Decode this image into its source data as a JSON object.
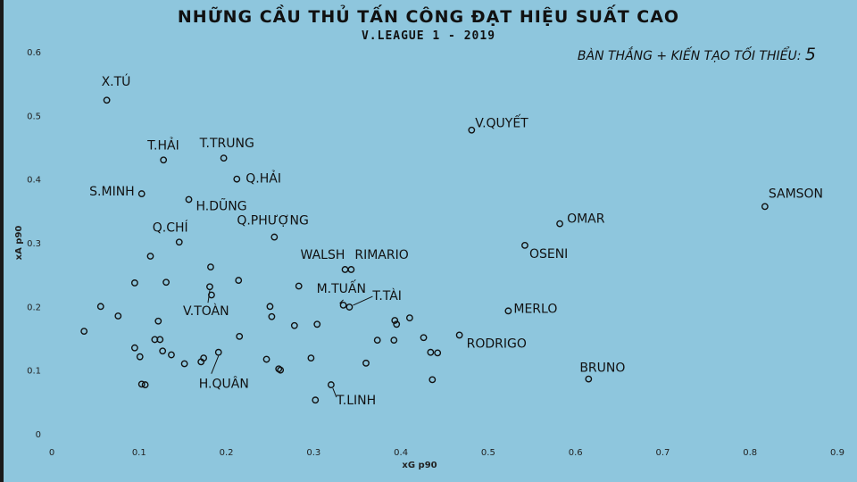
{
  "chart_data": {
    "type": "scatter",
    "title": "NHỮNG CẦU THỦ TẤN CÔNG ĐẠT HIỆU SUẤT CAO",
    "subtitle": "V.LEAGUE 1 - 2019",
    "note_text": "BÀN THẮNG + KIẾN TẠO TỐI THIỂU: ",
    "note_value": "5",
    "xlabel": "xG p90",
    "ylabel": "xA p90",
    "xlim": [
      0,
      0.9
    ],
    "ylim": [
      0,
      0.6
    ],
    "x_ticks": [
      "0",
      "0.1",
      "0.2",
      "0.3",
      "0.4",
      "0.5",
      "0.6",
      "0.7",
      "0.8",
      "0.9"
    ],
    "y_ticks": [
      "0",
      "0.1",
      "0.2",
      "0.3",
      "0.4",
      "0.5",
      "0.6"
    ],
    "grid": false,
    "points": [
      {
        "x": 0.063,
        "y": 0.524,
        "label": "X.TÚ"
      },
      {
        "x": 0.128,
        "y": 0.43,
        "label": "T.HẢI"
      },
      {
        "x": 0.197,
        "y": 0.433,
        "label": "T.TRUNG"
      },
      {
        "x": 0.212,
        "y": 0.4,
        "label": "Q.HẢI"
      },
      {
        "x": 0.103,
        "y": 0.377,
        "label": "S.MINH"
      },
      {
        "x": 0.157,
        "y": 0.368,
        "label": "H.DŨNG"
      },
      {
        "x": 0.146,
        "y": 0.301,
        "label": "Q.CHÍ"
      },
      {
        "x": 0.255,
        "y": 0.309,
        "label": "Q.PHƯỢNG"
      },
      {
        "x": 0.336,
        "y": 0.258,
        "label": "WALSH"
      },
      {
        "x": 0.343,
        "y": 0.258,
        "label": "RIMARIO"
      },
      {
        "x": 0.334,
        "y": 0.202,
        "label": "M.TUẤN"
      },
      {
        "x": 0.341,
        "y": 0.199,
        "label": "T.TÀI"
      },
      {
        "x": 0.181,
        "y": 0.231,
        "label": "V.TOÀN"
      },
      {
        "x": 0.191,
        "y": 0.128,
        "label": "H.QUÂN"
      },
      {
        "x": 0.32,
        "y": 0.077,
        "label": "T.LINH"
      },
      {
        "x": 0.481,
        "y": 0.477,
        "label": "V.QUYẾT"
      },
      {
        "x": 0.582,
        "y": 0.33,
        "label": "OMAR"
      },
      {
        "x": 0.542,
        "y": 0.296,
        "label": "OSENI"
      },
      {
        "x": 0.523,
        "y": 0.193,
        "label": "MERLO"
      },
      {
        "x": 0.467,
        "y": 0.155,
        "label": "RODRIGO"
      },
      {
        "x": 0.615,
        "y": 0.086,
        "label": "BRUNO"
      },
      {
        "x": 0.817,
        "y": 0.357,
        "label": "SAMSON"
      },
      {
        "x": 0.037,
        "y": 0.161,
        "label": ""
      },
      {
        "x": 0.056,
        "y": 0.2,
        "label": ""
      },
      {
        "x": 0.076,
        "y": 0.185,
        "label": ""
      },
      {
        "x": 0.095,
        "y": 0.237,
        "label": ""
      },
      {
        "x": 0.095,
        "y": 0.135,
        "label": ""
      },
      {
        "x": 0.101,
        "y": 0.121,
        "label": ""
      },
      {
        "x": 0.103,
        "y": 0.078,
        "label": ""
      },
      {
        "x": 0.107,
        "y": 0.077,
        "label": ""
      },
      {
        "x": 0.113,
        "y": 0.279,
        "label": ""
      },
      {
        "x": 0.118,
        "y": 0.148,
        "label": ""
      },
      {
        "x": 0.122,
        "y": 0.177,
        "label": ""
      },
      {
        "x": 0.124,
        "y": 0.148,
        "label": ""
      },
      {
        "x": 0.127,
        "y": 0.13,
        "label": ""
      },
      {
        "x": 0.131,
        "y": 0.238,
        "label": ""
      },
      {
        "x": 0.137,
        "y": 0.124,
        "label": ""
      },
      {
        "x": 0.152,
        "y": 0.11,
        "label": ""
      },
      {
        "x": 0.171,
        "y": 0.113,
        "label": ""
      },
      {
        "x": 0.174,
        "y": 0.119,
        "label": ""
      },
      {
        "x": 0.182,
        "y": 0.262,
        "label": ""
      },
      {
        "x": 0.183,
        "y": 0.218,
        "label": ""
      },
      {
        "x": 0.214,
        "y": 0.241,
        "label": ""
      },
      {
        "x": 0.215,
        "y": 0.153,
        "label": ""
      },
      {
        "x": 0.246,
        "y": 0.117,
        "label": ""
      },
      {
        "x": 0.25,
        "y": 0.2,
        "label": ""
      },
      {
        "x": 0.252,
        "y": 0.184,
        "label": ""
      },
      {
        "x": 0.26,
        "y": 0.102,
        "label": ""
      },
      {
        "x": 0.262,
        "y": 0.1,
        "label": ""
      },
      {
        "x": 0.278,
        "y": 0.17,
        "label": ""
      },
      {
        "x": 0.283,
        "y": 0.232,
        "label": ""
      },
      {
        "x": 0.297,
        "y": 0.119,
        "label": ""
      },
      {
        "x": 0.302,
        "y": 0.053,
        "label": ""
      },
      {
        "x": 0.304,
        "y": 0.172,
        "label": ""
      },
      {
        "x": 0.36,
        "y": 0.111,
        "label": ""
      },
      {
        "x": 0.373,
        "y": 0.147,
        "label": ""
      },
      {
        "x": 0.392,
        "y": 0.147,
        "label": ""
      },
      {
        "x": 0.393,
        "y": 0.178,
        "label": ""
      },
      {
        "x": 0.395,
        "y": 0.172,
        "label": ""
      },
      {
        "x": 0.41,
        "y": 0.182,
        "label": ""
      },
      {
        "x": 0.426,
        "y": 0.151,
        "label": ""
      },
      {
        "x": 0.434,
        "y": 0.128,
        "label": ""
      },
      {
        "x": 0.436,
        "y": 0.085,
        "label": ""
      },
      {
        "x": 0.442,
        "y": 0.127,
        "label": ""
      }
    ]
  }
}
